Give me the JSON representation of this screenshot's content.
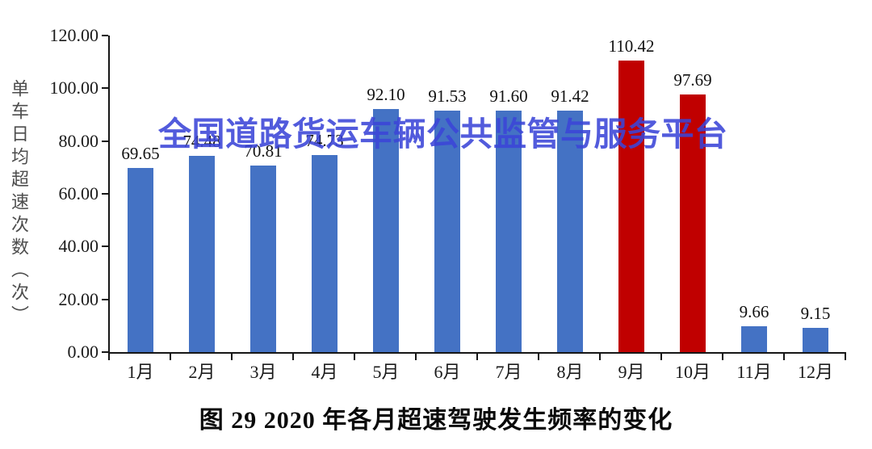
{
  "chart_data": {
    "type": "bar",
    "title": "图 29 2020 年各月超速驾驶发生频率的变化",
    "ylabel": "单车日均超速次数（次）",
    "watermark": "全国道路货运车辆公共监管与服务平台",
    "categories": [
      "1月",
      "2月",
      "3月",
      "4月",
      "5月",
      "6月",
      "7月",
      "8月",
      "9月",
      "10月",
      "11月",
      "12月"
    ],
    "values": [
      69.65,
      74.48,
      70.81,
      74.73,
      92.1,
      91.53,
      91.6,
      91.42,
      110.42,
      97.69,
      9.66,
      9.15
    ],
    "value_labels": [
      "69.65",
      "74.48",
      "70.81",
      "74.73",
      "92.10",
      "91.53",
      "91.60",
      "91.42",
      "110.42",
      "97.69",
      "9.66",
      "9.15"
    ],
    "bar_colors": [
      "#4472C4",
      "#4472C4",
      "#4472C4",
      "#4472C4",
      "#4472C4",
      "#4472C4",
      "#4472C4",
      "#4472C4",
      "#C00000",
      "#C00000",
      "#4472C4",
      "#4472C4"
    ],
    "ylim": [
      0,
      120
    ],
    "ytick_step": 20,
    "ytick_labels": [
      "0.00",
      "20.00",
      "40.00",
      "60.00",
      "80.00",
      "100.00",
      "120.00"
    ],
    "grid": false,
    "legend": "none",
    "colors": {
      "bar_primary": "#4472C4",
      "bar_highlight": "#C00000",
      "watermark": "#3B45D8",
      "axis": "#161616"
    }
  }
}
